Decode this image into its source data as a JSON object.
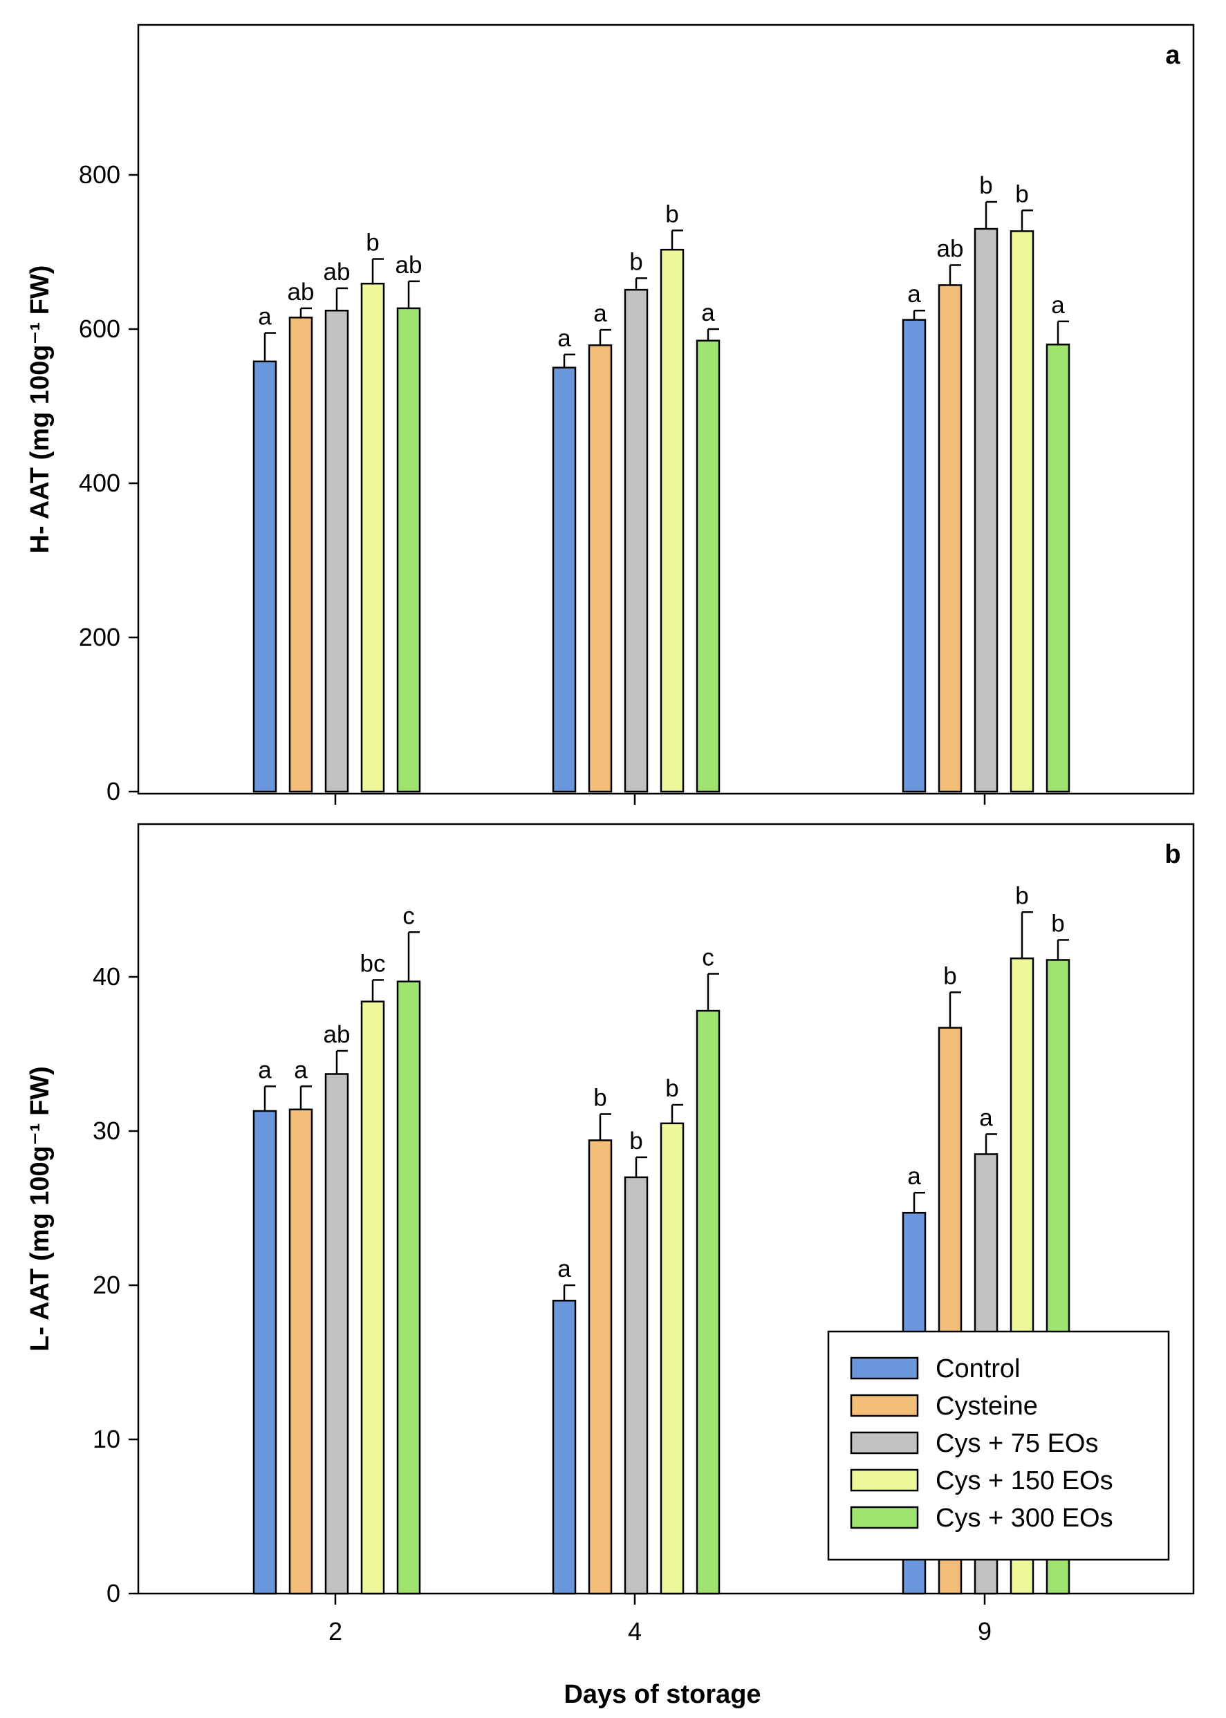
{
  "chart_data": [
    {
      "type": "bar",
      "panel": "a",
      "ylabel": "H- AAT  (mg 100g⁻¹ FW)",
      "xlabel": "",
      "ylim": [
        0,
        1000
      ],
      "yticks": [
        0,
        200,
        400,
        600,
        800
      ],
      "categories": [
        "2",
        "4",
        "9"
      ],
      "series": [
        {
          "name": "Control",
          "color": "#6b97dc",
          "values": [
            558,
            550,
            612
          ],
          "errors": [
            37,
            17,
            12
          ],
          "letters": [
            "a",
            "a",
            "a"
          ]
        },
        {
          "name": "Cysteine",
          "color": "#f2be7a",
          "values": [
            615,
            579,
            657
          ],
          "errors": [
            12,
            20,
            26
          ],
          "letters": [
            "ab",
            "a",
            "ab"
          ]
        },
        {
          "name": "Cys + 75 EOs",
          "color": "#c2c2c2",
          "values": [
            624,
            651,
            730
          ],
          "errors": [
            29,
            15,
            35
          ],
          "letters": [
            "ab",
            "b",
            "b"
          ]
        },
        {
          "name": "Cys + 150 EOs",
          "color": "#eef79a",
          "values": [
            659,
            703,
            727
          ],
          "errors": [
            32,
            25,
            27
          ],
          "letters": [
            "b",
            "b",
            "b"
          ]
        },
        {
          "name": "Cys + 300 EOs",
          "color": "#9ee46e",
          "values": [
            627,
            585,
            580
          ],
          "errors": [
            35,
            15,
            30
          ],
          "letters": [
            "ab",
            "a",
            "a"
          ]
        }
      ]
    },
    {
      "type": "bar",
      "panel": "b",
      "ylabel": "L- AAT (mg 100g⁻¹ FW)",
      "xlabel": "Days of storage",
      "ylim": [
        0,
        50
      ],
      "yticks": [
        0,
        10,
        20,
        30,
        40
      ],
      "categories": [
        "2",
        "4",
        "9"
      ],
      "series": [
        {
          "name": "Control",
          "color": "#6b97dc",
          "values": [
            31.3,
            19.0,
            24.7
          ],
          "errors": [
            1.6,
            1.0,
            1.3
          ],
          "letters": [
            "a",
            "a",
            "a"
          ]
        },
        {
          "name": "Cysteine",
          "color": "#f2be7a",
          "values": [
            31.4,
            29.4,
            36.7
          ],
          "errors": [
            1.5,
            1.7,
            2.3
          ],
          "letters": [
            "a",
            "b",
            "b"
          ]
        },
        {
          "name": "Cys + 75 EOs",
          "color": "#c2c2c2",
          "values": [
            33.7,
            27.0,
            28.5
          ],
          "errors": [
            1.5,
            1.3,
            1.3
          ],
          "letters": [
            "ab",
            "b",
            "a"
          ]
        },
        {
          "name": "Cys + 150 EOs",
          "color": "#eef79a",
          "values": [
            38.4,
            30.5,
            41.2
          ],
          "errors": [
            1.4,
            1.2,
            3.0
          ],
          "letters": [
            "bc",
            "b",
            "b"
          ]
        },
        {
          "name": "Cys + 300 EOs",
          "color": "#9ee46e",
          "values": [
            39.7,
            37.8,
            41.1
          ],
          "errors": [
            3.2,
            2.4,
            1.3
          ],
          "letters": [
            "c",
            "c",
            "b"
          ]
        }
      ]
    }
  ],
  "legend": {
    "position": "bottom-right of panel b",
    "items": [
      "Control",
      "Cysteine",
      "Cys + 75 EOs",
      "Cys + 150 EOs",
      "Cys + 300 EOs"
    ]
  }
}
